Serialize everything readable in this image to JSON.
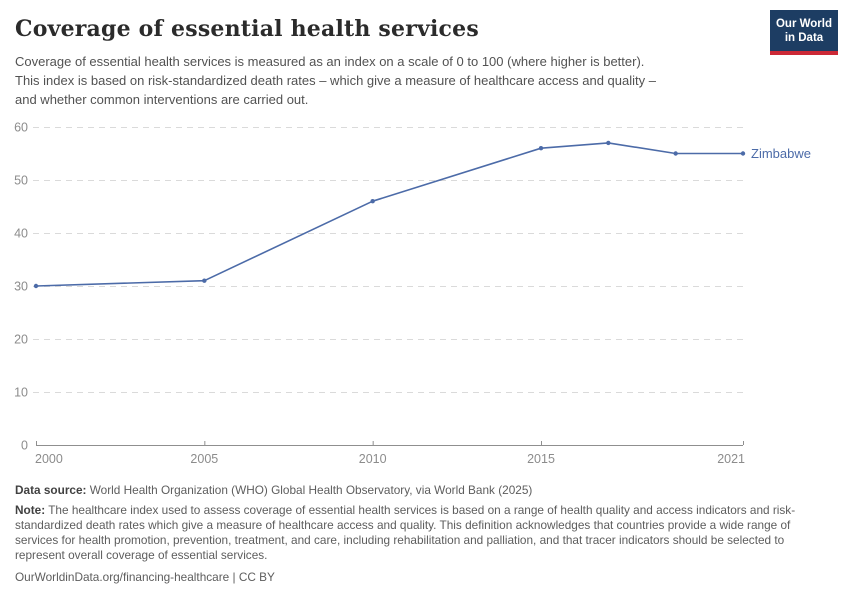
{
  "header": {
    "title": "Coverage of essential health services",
    "subtitle_lines": [
      "Coverage of essential health services is measured as an index on a scale of 0 to 100 (where higher is better).",
      "This index is based on risk-standardized death rates – which give a measure of healthcare access and quality –",
      "and whether common interventions are carried out."
    ],
    "logo": {
      "line1": "Our World",
      "line2": "in Data"
    }
  },
  "chart_data": {
    "type": "line",
    "title": "Coverage of essential health services",
    "x": [
      2000,
      2005,
      2010,
      2015,
      2017,
      2019,
      2021
    ],
    "series": [
      {
        "name": "Zimbabwe",
        "values": [
          30,
          31,
          46,
          56,
          57,
          55,
          55
        ],
        "color": "#4c6ba8"
      }
    ],
    "xlabel": "",
    "ylabel": "",
    "ylim": [
      0,
      60
    ],
    "yticks": [
      0,
      10,
      20,
      30,
      40,
      50,
      60
    ],
    "xticks": [
      2000,
      2005,
      2010,
      2015,
      2021
    ],
    "grid": "horizontal-dashed",
    "legend_position": "end-of-line-label"
  },
  "footer": {
    "data_source_label": "Data source:",
    "data_source_text": " World Health Organization (WHO) Global Health Observatory, via World Bank (2025)",
    "note_label": "Note:",
    "note_text": " The healthcare index used to assess coverage of essential health services is based on a range of health quality and access indicators and risk-standardized death rates which give a measure of healthcare access and quality. This definition acknowledges that countries provide a wide range of services for health promotion, prevention, treatment, and care, including rehabilitation and palliation, and that tracer indicators should be selected to represent overall coverage of essential services.",
    "url_text": "OurWorldinData.org/financing-healthcare",
    "separator": " | ",
    "license_text": "CC BY"
  },
  "colors": {
    "accent_line": "#4c6ba8",
    "gridline": "#dadada",
    "axis": "#8f8f8f",
    "tick_label": "#8c8c8c",
    "logo_bg": "#1d3d63",
    "logo_stripe": "#cc2936",
    "title_text": "#2b2b2b"
  }
}
